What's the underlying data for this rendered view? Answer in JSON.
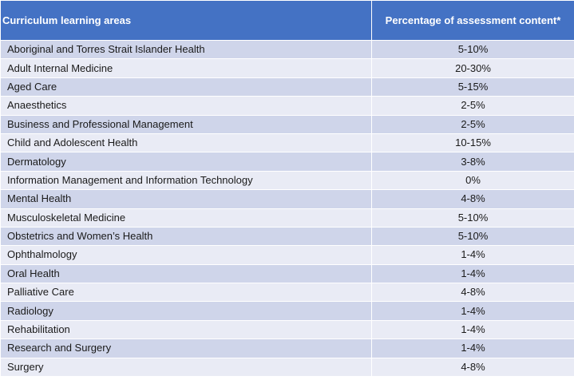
{
  "table": {
    "headers": {
      "area": "Curriculum learning areas",
      "percentage": "Percentage of assessment content*"
    },
    "rows": [
      {
        "area": "Aboriginal and Torres Strait Islander Health",
        "percentage": "5-10%"
      },
      {
        "area": "Adult Internal Medicine",
        "percentage": "20-30%"
      },
      {
        "area": "Aged Care",
        "percentage": "5-15%"
      },
      {
        "area": "Anaesthetics",
        "percentage": "2-5%"
      },
      {
        "area": "Business and Professional Management",
        "percentage": "2-5%"
      },
      {
        "area": "Child and Adolescent Health",
        "percentage": "10-15%"
      },
      {
        "area": "Dermatology",
        "percentage": "3-8%"
      },
      {
        "area": "Information Management and Information Technology",
        "percentage": "0%"
      },
      {
        "area": "Mental Health",
        "percentage": "4-8%"
      },
      {
        "area": "Musculoskeletal Medicine",
        "percentage": "5-10%"
      },
      {
        "area": "Obstetrics and Women’s Health",
        "percentage": "5-10%"
      },
      {
        "area": "Ophthalmology",
        "percentage": "1-4%"
      },
      {
        "area": "Oral Health",
        "percentage": "1-4%"
      },
      {
        "area": "Palliative Care",
        "percentage": "4-8%"
      },
      {
        "area": "Radiology",
        "percentage": "1-4%"
      },
      {
        "area": "Rehabilitation",
        "percentage": "1-4%"
      },
      {
        "area": "Research and Surgery",
        "percentage": "1-4%"
      },
      {
        "area": "Surgery",
        "percentage": "4-8%"
      }
    ]
  },
  "colors": {
    "header_bg": "#4472c4",
    "row_odd_bg": "#cfd5ea",
    "row_even_bg": "#e9ebf5"
  }
}
